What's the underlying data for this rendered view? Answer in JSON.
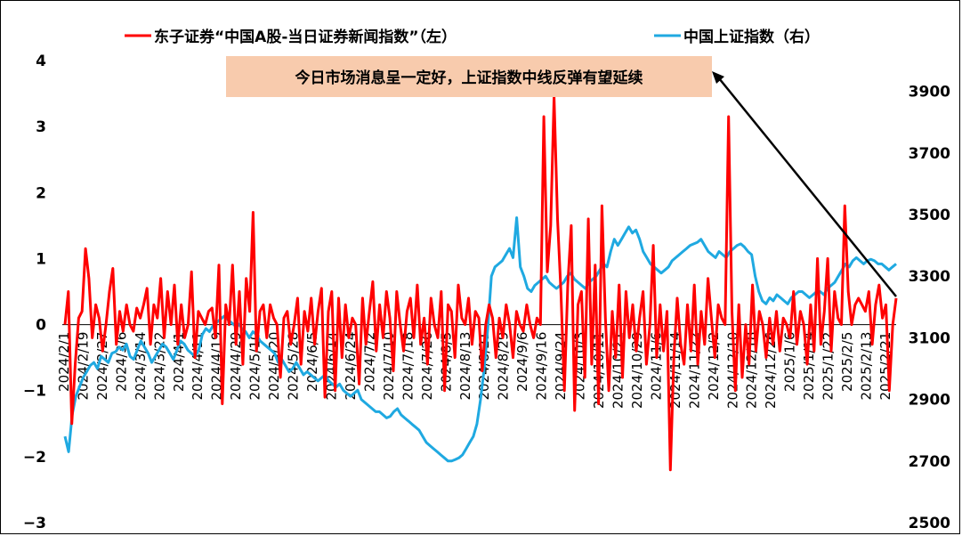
{
  "chart_data": {
    "type": "line",
    "legend": {
      "placement": "top",
      "left_series_label": "东子证券“中国A股-当日证券新闻指数”（左）",
      "right_series_label": "中国上证指数（右）"
    },
    "annotation": "今日市场消息呈一定好，上证指数中线反弹有望延续",
    "colors": {
      "left": "#ff0000",
      "right": "#1fa9e1",
      "annotation_bg": "#f8cbad"
    },
    "left_axis": {
      "ylim": [
        -3,
        4
      ],
      "ticks": [
        "−3",
        "−2",
        "−1",
        "0",
        "1",
        "2",
        "3",
        "4"
      ]
    },
    "right_axis": {
      "ylim": [
        2500,
        4000
      ],
      "ticks": [
        "2500",
        "2700",
        "2900",
        "3100",
        "3300",
        "3500",
        "3700",
        "3900"
      ]
    },
    "x_ticks": [
      "2024/2/1",
      "2024/2/19",
      "2024/2/27",
      "2024/3/6",
      "2024/3/14",
      "2024/3/22",
      "2024/4/1",
      "2024/4/11",
      "2024/4/19",
      "2024/4/29",
      "2024/5/10",
      "2024/5/20",
      "2024/5/28",
      "2024/6/5",
      "2024/6/14",
      "2024/6/24",
      "2024/7/2",
      "2024/7/10",
      "2024/7/18",
      "2024/7/26",
      "2024/8/5",
      "2024/8/13",
      "2024/8/21",
      "2024/8/29",
      "2024/9/6",
      "2024/9/16",
      "2024/9/24",
      "2024/10/3",
      "2024/10/11",
      "2024/10/21",
      "2024/10/29",
      "2024/11/6",
      "2024/11/14",
      "2024/11/22",
      "2024/12/2",
      "2024/12/10",
      "2024/12/18",
      "2024/12/26",
      "2025/1/6",
      "2025/1/14",
      "2025/1/22",
      "2025/2/5",
      "2025/2/13",
      "2025/2/21"
    ],
    "series": [
      {
        "name": "东子证券“中国A股-当日证券新闻指数”（左）",
        "axis": "left",
        "values": [
          0.0,
          0.5,
          -1.5,
          -0.6,
          0.1,
          0.2,
          1.15,
          0.7,
          -0.2,
          0.3,
          0.1,
          -0.4,
          0.0,
          0.5,
          0.85,
          -0.3,
          0.2,
          -0.1,
          0.3,
          0.0,
          -0.1,
          0.25,
          0.1,
          0.3,
          0.55,
          -0.3,
          0.3,
          0.1,
          0.7,
          -0.2,
          0.5,
          0.0,
          0.6,
          -0.3,
          0.3,
          -0.2,
          0.0,
          0.8,
          -0.5,
          0.2,
          0.1,
          0.0,
          0.2,
          0.25,
          -0.2,
          0.9,
          -1.2,
          0.3,
          0.0,
          0.9,
          -0.3,
          0.5,
          -0.6,
          0.7,
          0.2,
          1.7,
          -0.4,
          0.2,
          0.3,
          -0.2,
          0.3,
          0.1,
          0.0,
          -0.8,
          0.1,
          0.2,
          -0.3,
          0.0,
          0.4,
          -0.6,
          0.2,
          -0.1,
          0.4,
          -0.3,
          0.2,
          0.55,
          -1.1,
          0.2,
          0.5,
          -1.0,
          0.4,
          -0.5,
          0.3,
          -0.2,
          0.1,
          0.0,
          -0.9,
          0.4,
          -0.3,
          0.2,
          0.65,
          -0.4,
          0.3,
          -0.2,
          0.5,
          0.1,
          -0.7,
          0.5,
          0.0,
          -0.4,
          0.2,
          0.4,
          -0.2,
          0.6,
          -0.3,
          0.1,
          -0.6,
          0.4,
          0.0,
          -0.2,
          0.5,
          -1.0,
          0.3,
          0.2,
          -0.5,
          0.6,
          0.1,
          0.0,
          0.4,
          -0.3,
          0.2,
          0.1,
          -0.7,
          0.0,
          0.3,
          0.1,
          -0.5,
          0.1,
          -0.2,
          0.3,
          0.0,
          -0.5,
          0.2,
          0.0,
          -0.1,
          0.3,
          0.0,
          -0.2,
          0.1,
          0.0,
          3.15,
          0.8,
          1.5,
          3.45,
          1.6,
          0.5,
          -1.0,
          0.6,
          1.5,
          -1.3,
          0.3,
          0.5,
          -0.8,
          1.6,
          -0.6,
          0.9,
          -1.2,
          1.8,
          0.1,
          -1.0,
          0.2,
          -0.5,
          0.6,
          -0.8,
          0.5,
          -0.2,
          0.3,
          -0.4,
          0.1,
          0.5,
          -0.6,
          0.0,
          1.2,
          -0.5,
          0.3,
          -0.4,
          0.2,
          -2.2,
          -0.5,
          0.4,
          -0.3,
          -0.6,
          0.3,
          -0.4,
          0.6,
          -0.6,
          0.2,
          -0.3,
          0.7,
          0.1,
          -0.5,
          0.3,
          0.1,
          0.0,
          3.15,
          0.2,
          -1.0,
          0.3,
          -0.8,
          0.0,
          -0.6,
          0.6,
          -0.4,
          0.2,
          0.0,
          -0.5,
          0.1,
          -0.3,
          0.2,
          -0.4,
          0.1,
          0.0,
          -0.2,
          0.5,
          -0.3,
          0.2,
          0.0,
          -0.6,
          0.3,
          -0.4,
          1.0,
          -0.3,
          0.2,
          1.0,
          -0.4,
          0.5,
          0.1,
          0.0,
          1.8,
          0.5,
          0.0,
          0.3,
          0.4,
          0.3,
          0.2,
          0.5,
          -0.3,
          0.3,
          0.6,
          0.1,
          0.3,
          -1.0,
          0.0,
          0.4
        ]
      },
      {
        "name": "中国上证指数（右）",
        "axis": "right",
        "values": [
          2780,
          2730,
          2850,
          2910,
          2940,
          2970,
          2990,
          3010,
          3020,
          3000,
          3040,
          3030,
          3020,
          3050,
          3055,
          3070,
          3060,
          3080,
          3040,
          3030,
          3060,
          3090,
          3070,
          3050,
          3020,
          3040,
          3060,
          3080,
          3070,
          3050,
          3030,
          3060,
          3090,
          3080,
          3060,
          3050,
          3040,
          3060,
          3110,
          3130,
          3120,
          3140,
          3150,
          3160,
          3170,
          3160,
          3150,
          3140,
          3145,
          3130,
          3120,
          3100,
          3120,
          3110,
          3090,
          3080,
          3070,
          3060,
          3050,
          3020,
          3030,
          3010,
          2990,
          3000,
          3020,
          3000,
          2980,
          2990,
          2980,
          2970,
          2960,
          2970,
          2980,
          2960,
          2950,
          2940,
          2950,
          2930,
          2920,
          2910,
          2920,
          2930,
          2900,
          2890,
          2880,
          2870,
          2860,
          2860,
          2850,
          2840,
          2845,
          2860,
          2870,
          2850,
          2840,
          2830,
          2820,
          2810,
          2800,
          2780,
          2760,
          2750,
          2740,
          2730,
          2720,
          2710,
          2700,
          2700,
          2705,
          2710,
          2720,
          2740,
          2760,
          2780,
          2820,
          2900,
          3000,
          3130,
          3300,
          3330,
          3340,
          3350,
          3370,
          3390,
          3360,
          3490,
          3330,
          3300,
          3260,
          3250,
          3270,
          3280,
          3290,
          3300,
          3280,
          3270,
          3260,
          3270,
          3280,
          3300,
          3310,
          3290,
          3280,
          3270,
          3260,
          3280,
          3290,
          3300,
          3320,
          3340,
          3330,
          3380,
          3420,
          3400,
          3420,
          3440,
          3460,
          3440,
          3450,
          3420,
          3380,
          3360,
          3340,
          3330,
          3320,
          3310,
          3320,
          3330,
          3350,
          3360,
          3370,
          3380,
          3390,
          3400,
          3405,
          3410,
          3420,
          3400,
          3380,
          3370,
          3360,
          3380,
          3370,
          3360,
          3380,
          3390,
          3400,
          3405,
          3395,
          3380,
          3370,
          3300,
          3250,
          3220,
          3210,
          3230,
          3220,
          3240,
          3230,
          3220,
          3210,
          3230,
          3240,
          3250,
          3250,
          3240,
          3230,
          3240,
          3250,
          3250,
          3240,
          3260,
          3270,
          3280,
          3300,
          3320,
          3340,
          3330,
          3350,
          3360,
          3350,
          3340,
          3350,
          3355,
          3350,
          3340,
          3340,
          3330,
          3320,
          3330,
          3340
        ]
      }
    ]
  }
}
